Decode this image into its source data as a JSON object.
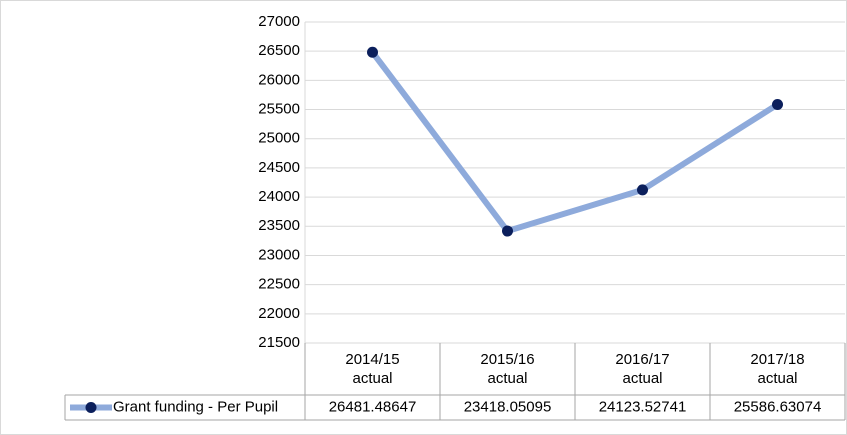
{
  "chart_data": {
    "type": "line",
    "categories": [
      "2014/15 actual",
      "2015/16 actual",
      "2016/17 actual",
      "2017/18 actual"
    ],
    "series": [
      {
        "name": "Grant funding - Per Pupil",
        "color": "#8eaadb",
        "marker_color": "#0b1f5c",
        "values": [
          26481.48647,
          23418.05095,
          24123.52741,
          25586.63074
        ]
      }
    ],
    "ylim": [
      21500,
      27000
    ],
    "yticks": [
      21500,
      22000,
      22500,
      23000,
      23500,
      24000,
      24500,
      25000,
      25500,
      26000,
      26500,
      27000
    ],
    "grid": true,
    "data_table": true
  }
}
